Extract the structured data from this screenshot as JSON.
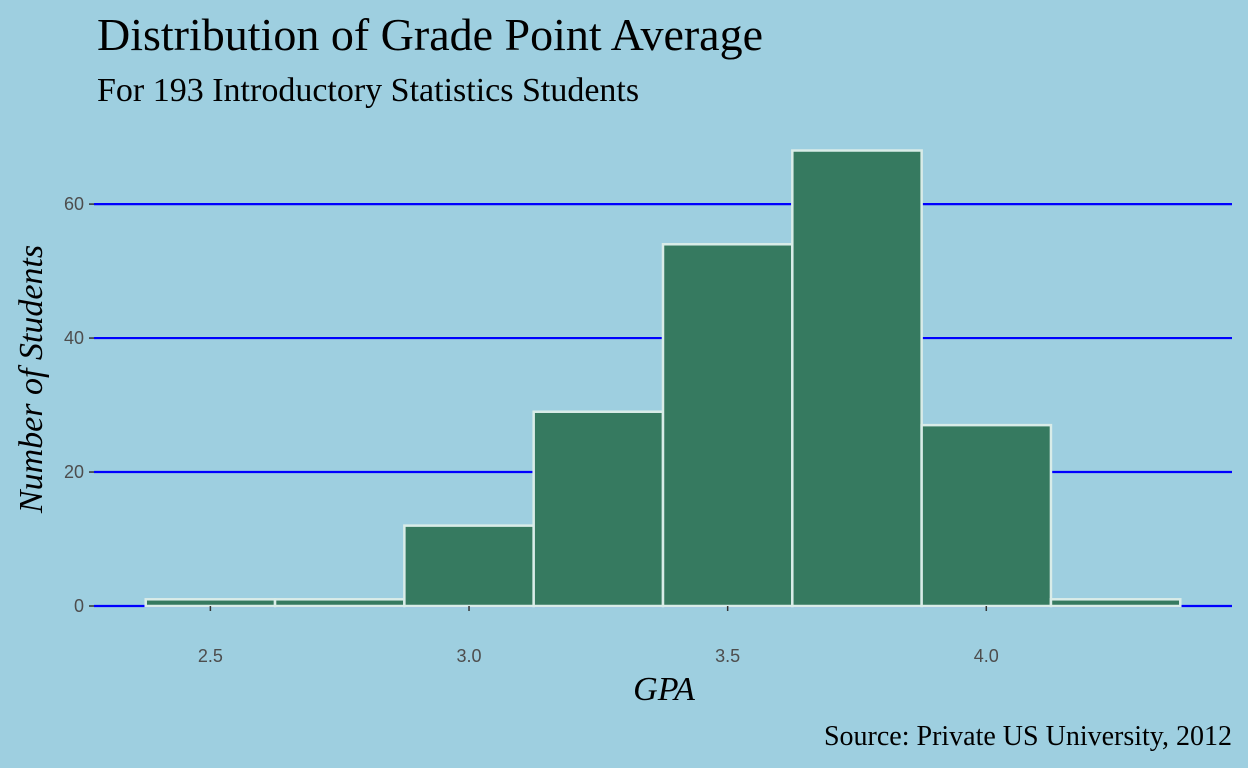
{
  "chart_data": {
    "type": "bar",
    "title": "Distribution of Grade Point Average",
    "subtitle": "For 193 Introductory Statistics Students",
    "xlabel": "GPA",
    "ylabel": "Number of Students",
    "caption": "Source: Private US University, 2012",
    "bins": [
      {
        "start": 2.375,
        "end": 2.625,
        "count": 1
      },
      {
        "start": 2.625,
        "end": 2.875,
        "count": 1
      },
      {
        "start": 2.875,
        "end": 3.125,
        "count": 12
      },
      {
        "start": 3.125,
        "end": 3.375,
        "count": 29
      },
      {
        "start": 3.375,
        "end": 3.625,
        "count": 54
      },
      {
        "start": 3.625,
        "end": 3.875,
        "count": 68
      },
      {
        "start": 3.875,
        "end": 4.125,
        "count": 27
      },
      {
        "start": 4.125,
        "end": 4.375,
        "count": 1
      }
    ],
    "x_ticks": [
      {
        "value": 2.5,
        "label": "2.5"
      },
      {
        "value": 3.0,
        "label": "3.0"
      },
      {
        "value": 3.5,
        "label": "3.5"
      },
      {
        "value": 4.0,
        "label": "4.0"
      }
    ],
    "y_ticks": [
      {
        "value": 0,
        "label": "0"
      },
      {
        "value": 20,
        "label": "20"
      },
      {
        "value": 40,
        "label": "40"
      },
      {
        "value": 60,
        "label": "60"
      }
    ],
    "xlim": [
      2.275,
      4.475
    ],
    "ylim": [
      0,
      68
    ],
    "grid": "horizontal major lines only",
    "colors": {
      "background": "#9ecfe0",
      "bar_fill": "#367a60",
      "bar_outline": "#d9ece8",
      "gridline": "#0000ff",
      "tick_text": "#4d4d4d",
      "text": "#000000"
    }
  }
}
